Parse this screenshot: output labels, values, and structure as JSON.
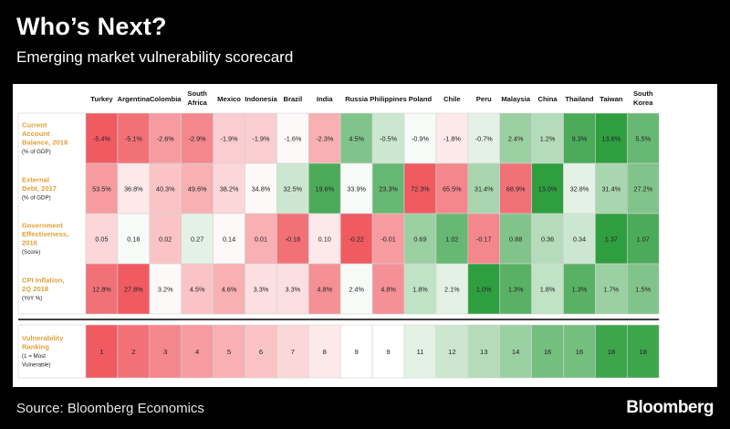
{
  "header": {
    "title": "Who’s Next?",
    "subtitle": "Emerging market vulnerability scorecard"
  },
  "footer": {
    "source": "Source: Bloomberg Economics",
    "brand": "Bloomberg"
  },
  "colors": {
    "worst": "#f05b62",
    "neutral": "#ffffff",
    "best": "#2f9e3f",
    "row_label": "#e0a13a"
  },
  "chart_data": {
    "type": "table",
    "columns": [
      "Turkey",
      "Argentina",
      "Colombia",
      "South Africa",
      "Mexico",
      "Indonesia",
      "Brazil",
      "India",
      "Russia",
      "Philippines",
      "Poland",
      "Chile",
      "Peru",
      "Malaysia",
      "China",
      "Thailand",
      "Taiwan",
      "South Korea"
    ],
    "rows": [
      {
        "label": [
          "Current",
          "Account",
          "Balance, 2018"
        ],
        "unit": "(% of GDP)",
        "better": "high",
        "values": [
          "-5.4%",
          "-5.1%",
          "-2.6%",
          "-2.9%",
          "-1.9%",
          "-1.9%",
          "-1.6%",
          "-2.3%",
          "4.5%",
          "-0.5%",
          "-0.9%",
          "-1.8%",
          "-0.7%",
          "2.4%",
          "1.2%",
          "9.3%",
          "13.6%",
          "5.5%"
        ]
      },
      {
        "label": [
          "External",
          "Debt, 2017"
        ],
        "unit": "(% of GDP)",
        "better": "low",
        "values": [
          "53.5%",
          "36.8%",
          "40.3%",
          "49.6%",
          "38.2%",
          "34.8%",
          "32.5%",
          "19.6%",
          "33.9%",
          "23.3%",
          "72.3%",
          "65.5%",
          "31.4%",
          "68.9%",
          "13.0%",
          "32.8%",
          "31.4%",
          "27.2%"
        ]
      },
      {
        "label": [
          "Government",
          "Effectiveness,",
          "2016"
        ],
        "unit": "(Score)",
        "better": "high",
        "values": [
          "0.05",
          "0.18",
          "0.02",
          "0.27",
          "0.14",
          "0.01",
          "-0.18",
          "0.10",
          "-0.22",
          "-0.01",
          "0.69",
          "1.02",
          "-0.17",
          "0.88",
          "0.36",
          "0.34",
          "1.37",
          "1.07"
        ]
      },
      {
        "label": [
          "CPI Inflation,",
          "2Q 2018"
        ],
        "unit": "(YoY %)",
        "better": "low",
        "values": [
          "12.8%",
          "27.8%",
          "3.2%",
          "4.5%",
          "4.6%",
          "3.3%",
          "3.3%",
          "4.8%",
          "2.4%",
          "4.8%",
          "1.8%",
          "2.1%",
          "1.0%",
          "1.3%",
          "1.8%",
          "1.3%",
          "1.7%",
          "1.5%"
        ]
      }
    ],
    "ranking": {
      "label": [
        "Vulnerability",
        "Ranking"
      ],
      "unit": "(1 = Most",
      "unit2": "Vulnerable)",
      "better": "high",
      "values": [
        "1",
        "2",
        "3",
        "4",
        "5",
        "6",
        "7",
        "8",
        "9",
        "9",
        "11",
        "12",
        "13",
        "14",
        "16",
        "16",
        "18",
        "18"
      ]
    }
  }
}
